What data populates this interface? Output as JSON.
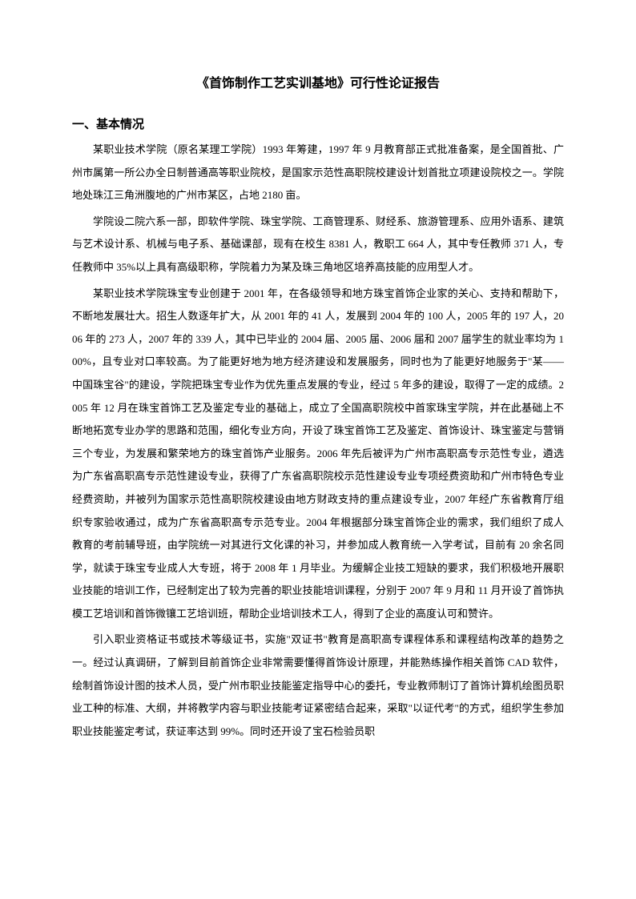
{
  "title": "《首饰制作工艺实训基地》可行性论证报告",
  "section1_heading": "一、基本情况",
  "p1": "某职业技术学院（原名某理工学院）1993 年筹建，1997 年 9 月教育部正式批准备案，是全国首批、广州市属第一所公办全日制普通高等职业院校，是国家示范性高职院校建设计划首批立项建设院校之一。学院地处珠江三角洲腹地的广州市某区，占地 2180 亩。",
  "p2": "学院设二院六系一部，即软件学院、珠宝学院、工商管理系、财经系、旅游管理系、应用外语系、建筑与艺术设计系、机械与电子系、基础课部，现有在校生 8381 人，教职工 664 人，其中专任教师 371 人，专任教师中 35%以上具有高级职称，学院着力为某及珠三角地区培养高技能的应用型人才。",
  "p3": "某职业技术学院珠宝专业创建于 2001 年，在各级领导和地方珠宝首饰企业家的关心、支持和帮助下，不断地发展壮大。招生人数逐年扩大，从 2001 年的 41 人，发展到 2004 年的 100 人，2005 年的 197 人，2006 年的 273 人，2007 年的 339 人，其中已毕业的 2004 届、2005 届、2006 届和 2007 届学生的就业率均为 100%，且专业对口率较高。为了能更好地为地方经济建设和发展服务，同时也为了能更好地服务于\"某——中国珠宝谷\"的建设，学院把珠宝专业作为优先重点发展的专业，经过 5 年多的建设，取得了一定的成绩。2005 年 12 月在珠宝首饰工艺及鉴定专业的基础上，成立了全国高职院校中首家珠宝学院，并在此基础上不断地拓宽专业办学的思路和范围，细化专业方向，开设了珠宝首饰工艺及鉴定、首饰设计、珠宝鉴定与营销三个专业，为发展和繁荣地方的珠宝首饰产业服务。2006 年先后被评为广州市高职高专示范性专业，遴选为广东省高职高专示范性建设专业，获得了广东省高职院校示范性建设专业专项经费资助和广州市特色专业经费资助，并被列为国家示范性高职院校建设由地方财政支持的重点建设专业，2007 年经广东省教育厅组织专家验收通过，成为广东省高职高专示范专业。2004 年根据部分珠宝首饰企业的需求，我们组织了成人教育的考前辅导班，由学院统一对其进行文化课的补习，并参加成人教育统一入学考试，目前有 20 余名同学，就读于珠宝专业成人大专班，将于 2008 年 1 月毕业。为缓解企业技工短缺的要求，我们积极地开展职业技能的培训工作，已经制定出了较为完善的职业技能培训课程，分别于 2007 年 9 月和 11 月开设了首饰执模工艺培训和首饰微镶工艺培训班，帮助企业培训技术工人，得到了企业的高度认可和赞许。",
  "p4": "引入职业资格证书或技术等级证书，实施\"双证书\"教育是高职高专课程体系和课程结构改革的趋势之一。经过认真调研，了解到目前首饰企业非常需要懂得首饰设计原理，并能熟练操作相关首饰 CAD 软件，绘制首饰设计图的技术人员，受广州市职业技能鉴定指导中心的委托，专业教师制订了首饰计算机绘图员职业工种的标准、大纲，并将教学内容与职业技能考证紧密结合起来，采取\"以证代考\"的方式，组织学生参加职业技能鉴定考试，获证率达到 99%。同时还开设了宝石检验员职"
}
